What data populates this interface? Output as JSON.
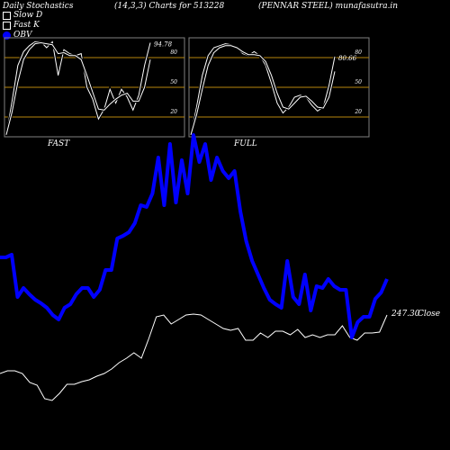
{
  "header": {
    "left": "Daily Stochastics",
    "middle": "(14,3,3) Charts for 513228",
    "right": "(PENNAR STEEL) munafasutra.in"
  },
  "legend": [
    {
      "label": "Slow  D",
      "icon": "square-outline"
    },
    {
      "label": "Fast K",
      "icon": "square-outline"
    },
    {
      "label": "OBV",
      "icon": "blue-circle"
    }
  ],
  "colors": {
    "background": "#000000",
    "obv": "#0000ff",
    "price": "#ffffff",
    "levels": "#b8860b",
    "panel_border": "#808080"
  },
  "chart_data": [
    {
      "type": "line",
      "title": "FAST",
      "level_lines": [
        20,
        50,
        80
      ],
      "tick_labels": [
        "80",
        "50",
        "20"
      ],
      "ylim": [
        0,
        100
      ],
      "last_value_label": "94.78",
      "series": [
        {
          "name": "Fast K",
          "values": [
            2,
            36,
            72,
            86,
            92,
            96,
            96,
            90,
            96,
            62,
            88,
            84,
            82,
            84,
            50,
            38,
            18,
            28,
            48,
            34,
            48,
            40,
            27,
            42,
            72,
            95
          ]
        },
        {
          "name": "Slow  D",
          "values": [
            2,
            25,
            55,
            78,
            88,
            94,
            95,
            94,
            93,
            84,
            85,
            82,
            82,
            78,
            62,
            45,
            28,
            27,
            33,
            38,
            42,
            44,
            36,
            36,
            50,
            78
          ]
        }
      ]
    },
    {
      "type": "line",
      "title": "FULL",
      "level_lines": [
        20,
        50,
        80
      ],
      "tick_labels": [
        "80",
        "50",
        "20"
      ],
      "ylim": [
        0,
        100
      ],
      "last_value_label": "80.66",
      "series": [
        {
          "name": "Fast K",
          "values": [
            2,
            30,
            62,
            82,
            90,
            92,
            94,
            93,
            90,
            84,
            82,
            86,
            82,
            72,
            54,
            34,
            24,
            30,
            40,
            42,
            40,
            32,
            26,
            30,
            52,
            81
          ]
        },
        {
          "name": "Slow  D",
          "values": [
            2,
            22,
            48,
            72,
            85,
            90,
            92,
            92,
            90,
            86,
            83,
            83,
            82,
            76,
            62,
            44,
            30,
            28,
            34,
            40,
            41,
            36,
            30,
            29,
            40,
            66
          ]
        }
      ]
    },
    {
      "type": "line",
      "series": [
        {
          "name": "OBV",
          "values": [
            286,
            286,
            283,
            330,
            320,
            327,
            333,
            337,
            342,
            350,
            355,
            342,
            338,
            327,
            320,
            320,
            330,
            322,
            300,
            300,
            265,
            262,
            258,
            248,
            228,
            230,
            215,
            175,
            228,
            160,
            225,
            178,
            215,
            150,
            180,
            160,
            200,
            175,
            190,
            198,
            190,
            235,
            268,
            290,
            305,
            320,
            333,
            338,
            342,
            290,
            330,
            338,
            305,
            345,
            318,
            320,
            310,
            318,
            322,
            322,
            375,
            358,
            352,
            352,
            332,
            325,
            310
          ]
        },
        {
          "name": "Close",
          "values": [
            415,
            412,
            412,
            415,
            425,
            428,
            443,
            445,
            437,
            427,
            427,
            424,
            422,
            418,
            415,
            410,
            403,
            398,
            392,
            398,
            376,
            352,
            350,
            360,
            355,
            350,
            349,
            350,
            355,
            360,
            365,
            367,
            365,
            378,
            378,
            370,
            375,
            368,
            368,
            372,
            366,
            375,
            372,
            375,
            372,
            372,
            362,
            375,
            378,
            370,
            370,
            369,
            350
          ]
        }
      ],
      "close_label": "247.30",
      "close_word": "Close"
    }
  ]
}
